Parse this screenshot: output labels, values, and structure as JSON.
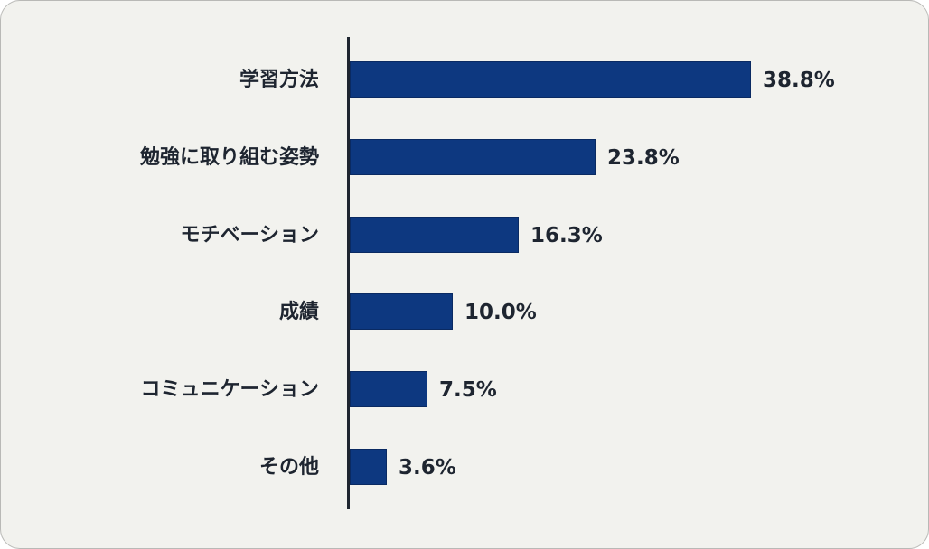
{
  "chart_data": {
    "type": "bar",
    "orientation": "horizontal",
    "title": "",
    "xlabel": "",
    "ylabel": "",
    "categories": [
      "学習方法",
      "勉強に取り組む姿勢",
      "モチベーション",
      "成績",
      "コミュニケーション",
      "その他"
    ],
    "values": [
      38.8,
      23.8,
      16.3,
      10.0,
      7.5,
      3.6
    ],
    "value_labels": [
      "38.8%",
      "23.8%",
      "16.3%",
      "10.0%",
      "7.5%",
      "3.6%"
    ],
    "unit": "%",
    "bar_color": "#0d3880",
    "grid": false,
    "legend": null
  },
  "rows": [
    {
      "label": "学習方法",
      "value_label": "38.8%"
    },
    {
      "label": "勉強に取り組む姿勢",
      "value_label": "23.8%"
    },
    {
      "label": "モチベーション",
      "value_label": "16.3%"
    },
    {
      "label": "成績",
      "value_label": "10.0%"
    },
    {
      "label": "コミュニケーション",
      "value_label": "7.5%"
    },
    {
      "label": "その他",
      "value_label": "3.6%"
    }
  ]
}
